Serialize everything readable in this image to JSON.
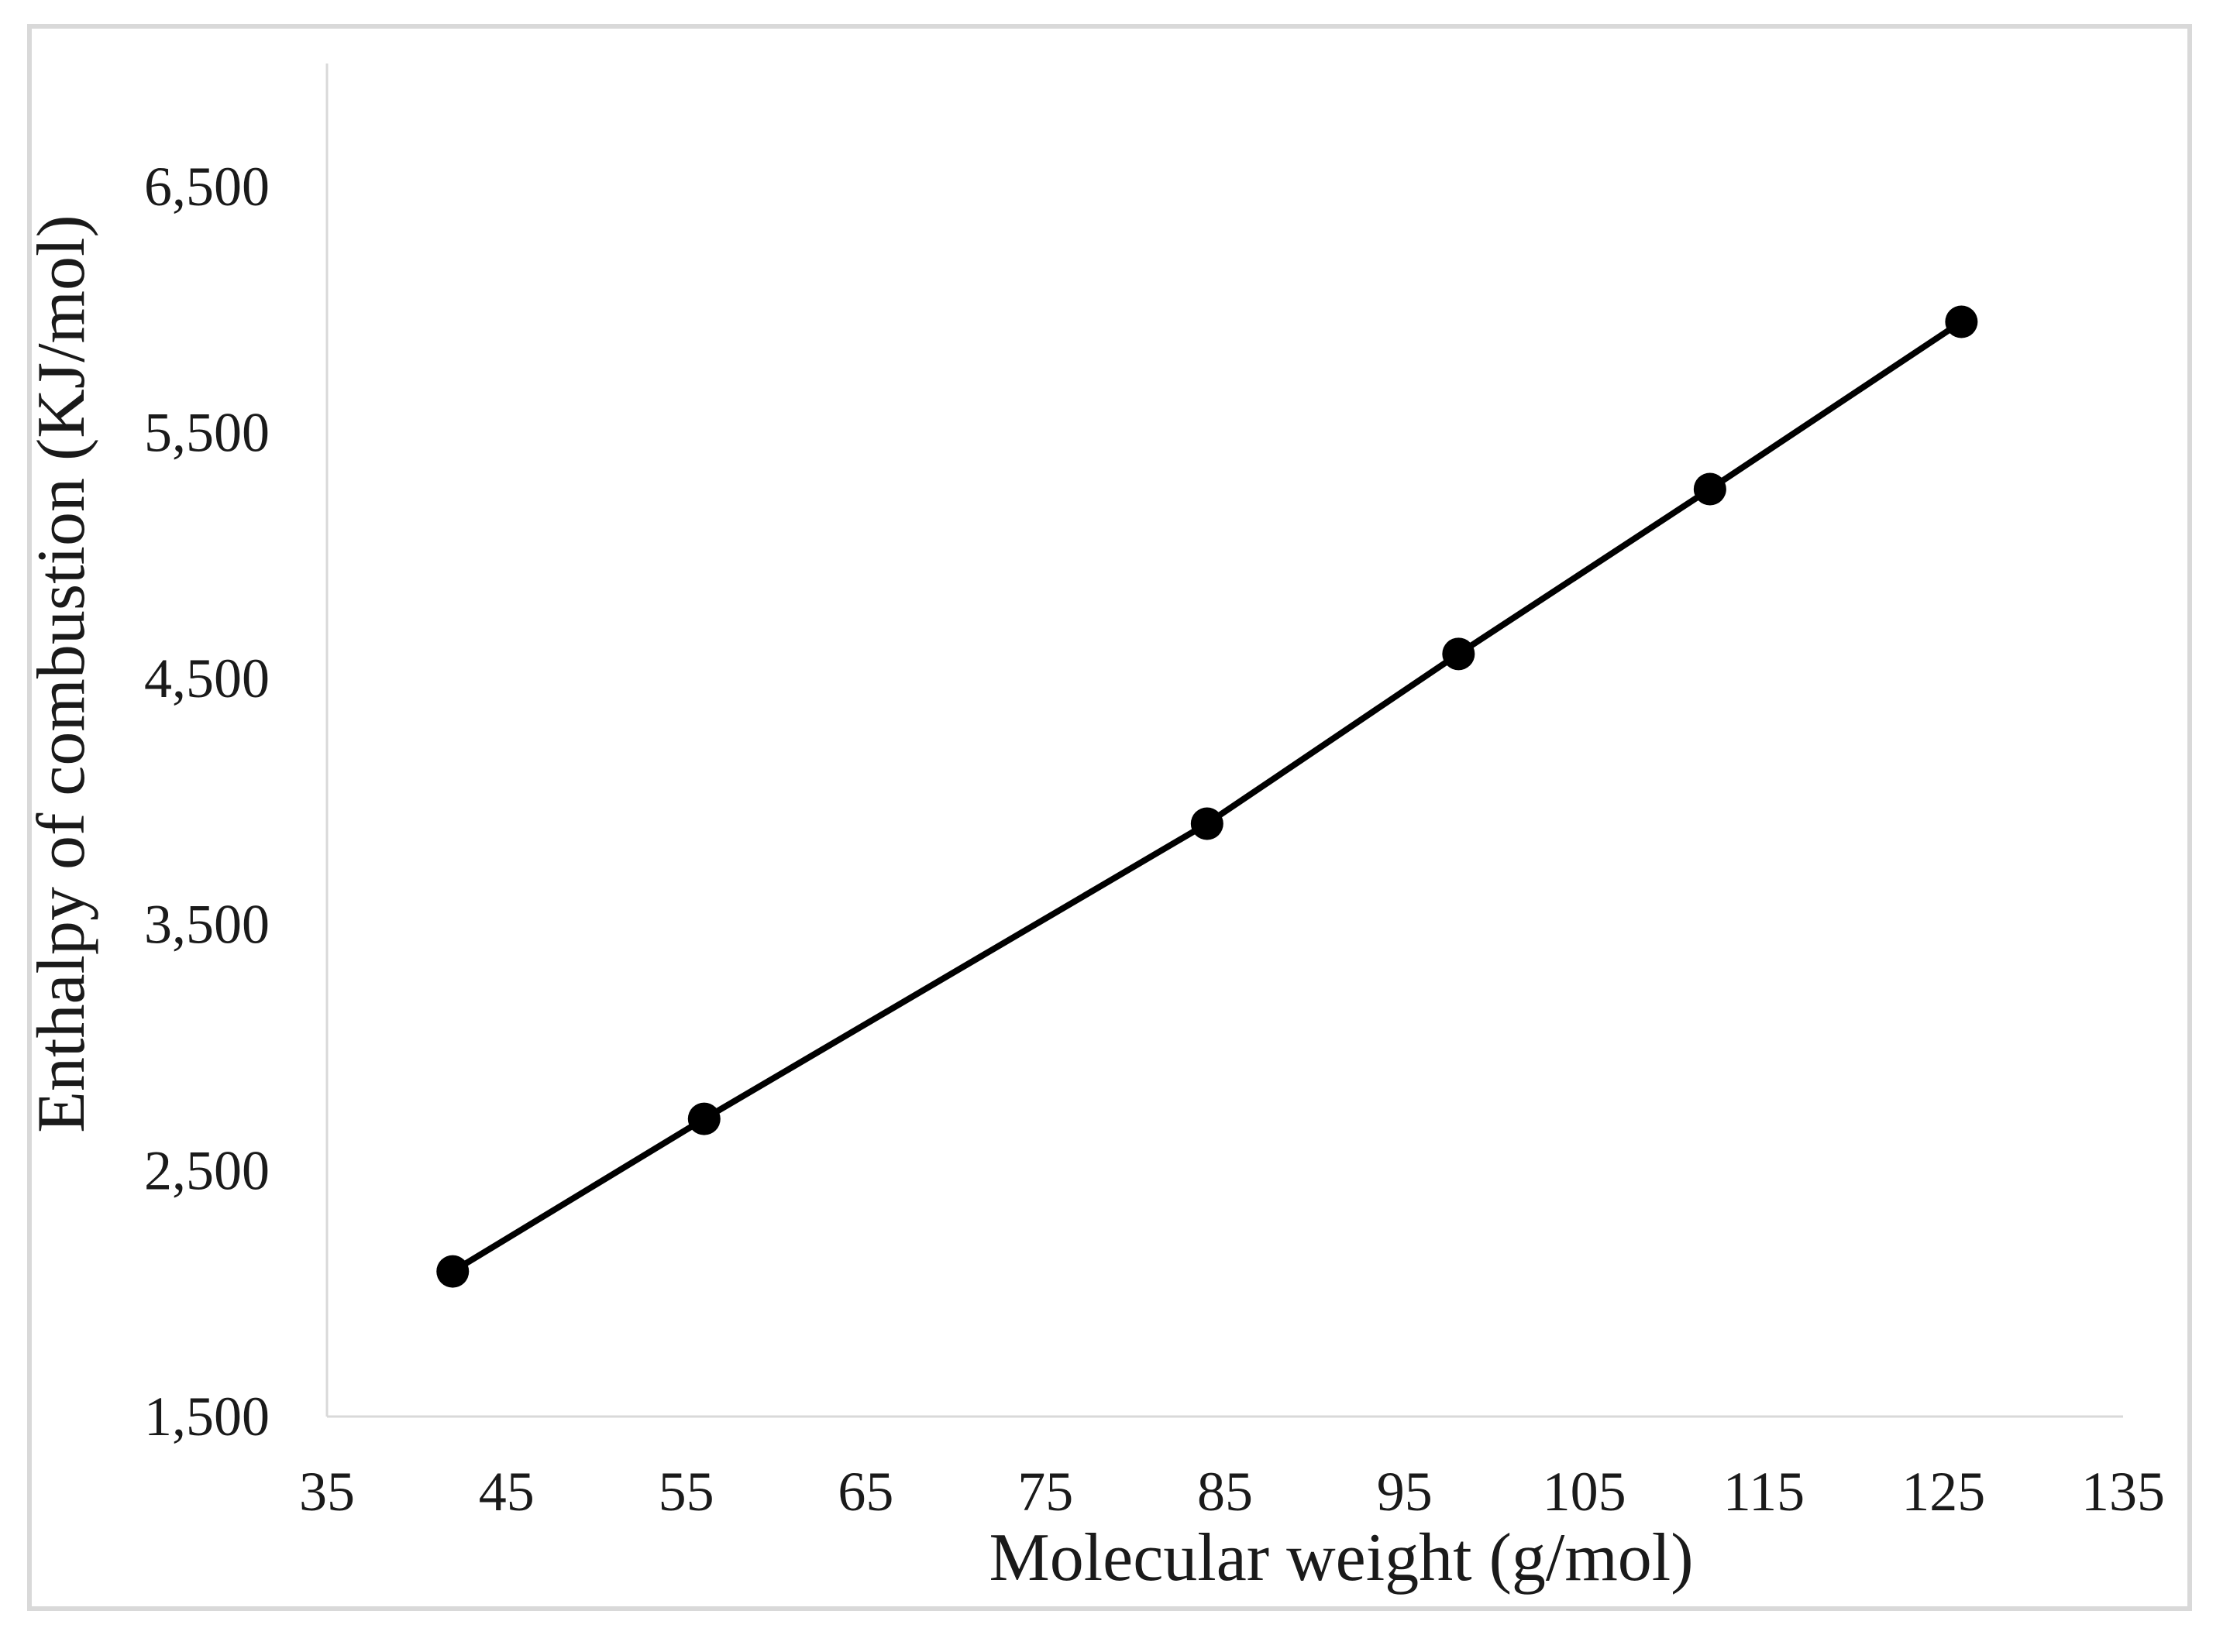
{
  "chart_data": {
    "type": "line",
    "title": "",
    "xlabel": "Molecular weight (g/mol)",
    "ylabel": "Enthalpy of combustion (KJ/mol)",
    "xlim": [
      35,
      135
    ],
    "ylim": [
      1500,
      7000
    ],
    "x_ticks": [
      35,
      45,
      55,
      65,
      75,
      85,
      95,
      105,
      115,
      125,
      135
    ],
    "x_tick_labels": [
      "35",
      "45",
      "55",
      "65",
      "75",
      "85",
      "95",
      "105",
      "115",
      "125",
      "135"
    ],
    "y_ticks": [
      1500,
      2500,
      3500,
      4500,
      5500,
      6500
    ],
    "y_tick_labels": [
      "1,500",
      "2,500",
      "3,500",
      "4,500",
      "5,500",
      "6,500"
    ],
    "grid": false,
    "legend": "none",
    "series": [
      {
        "color": "#000000",
        "marker": "circle",
        "x": [
          42,
          56,
          84,
          98,
          112,
          126
        ],
        "y": [
          2090,
          2710,
          3910,
          4600,
          5270,
          5950
        ]
      }
    ]
  },
  "colors": {
    "frame": "#d9d9d9",
    "axis": "#d9d9d9",
    "series": "#000000",
    "text": "#1a1a1a"
  }
}
